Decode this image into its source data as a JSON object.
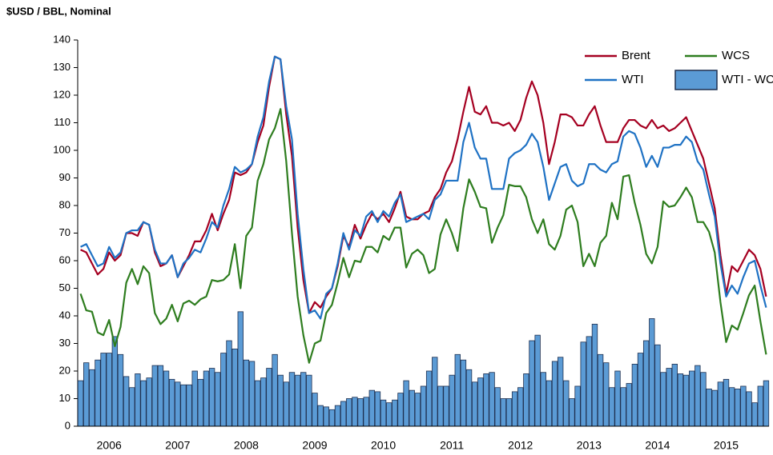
{
  "chart_data": {
    "type": "combo",
    "ylabel": "$USD / BBL, Nominal",
    "categories": [
      null,
      null,
      null,
      null,
      null,
      "2006",
      null,
      null,
      null,
      null,
      null,
      null,
      null,
      null,
      null,
      null,
      null,
      "2007",
      null,
      null,
      null,
      null,
      null,
      null,
      null,
      null,
      null,
      null,
      null,
      "2008",
      null,
      null,
      null,
      null,
      null,
      null,
      null,
      null,
      null,
      null,
      null,
      "2009",
      null,
      null,
      null,
      null,
      null,
      null,
      null,
      null,
      null,
      null,
      null,
      "2010",
      null,
      null,
      null,
      null,
      null,
      null,
      null,
      null,
      null,
      null,
      null,
      "2011",
      null,
      null,
      null,
      null,
      null,
      null,
      null,
      null,
      null,
      null,
      null,
      "2012",
      null,
      null,
      null,
      null,
      null,
      null,
      null,
      null,
      null,
      null,
      null,
      "2013",
      null,
      null,
      null,
      null,
      null,
      null,
      null,
      null,
      null,
      null,
      null,
      "2014",
      null,
      null,
      null,
      null,
      null,
      null,
      null,
      null,
      null,
      null,
      null,
      "2015",
      null,
      null,
      null,
      null,
      null,
      null,
      null
    ],
    "ylim": [
      0,
      140
    ],
    "yticks": [
      0,
      10,
      20,
      30,
      40,
      50,
      60,
      70,
      80,
      90,
      100,
      110,
      120,
      130,
      140
    ],
    "series": [
      {
        "name": "WTI - WCS",
        "type": "bar",
        "color": "#5b9bd5",
        "edge": "#1f3050",
        "values": [
          16.5,
          23,
          20.5,
          24,
          26.5,
          26.5,
          32.5,
          26,
          18,
          14,
          19,
          16.5,
          17.5,
          22,
          22,
          20,
          17,
          16,
          15,
          15,
          20,
          17,
          20,
          21,
          19.5,
          26.5,
          31,
          28,
          41.5,
          24,
          23.5,
          16.5,
          17.5,
          21,
          26,
          18.5,
          16,
          19.5,
          18.5,
          19.5,
          18.5,
          12,
          7.5,
          7,
          6,
          7.5,
          9,
          10,
          10.5,
          10,
          10.5,
          13,
          12.5,
          9.5,
          8.5,
          9.5,
          12,
          16.5,
          13,
          12,
          14.5,
          20,
          25,
          14.5,
          14.5,
          18.5,
          26,
          24,
          20.5,
          16,
          17.5,
          19,
          19.5,
          14,
          10,
          10,
          12.5,
          14,
          19,
          31,
          33,
          19.5,
          16.5,
          23.5,
          25,
          16.5,
          10,
          14.5,
          30.5,
          32.5,
          37,
          26,
          23,
          14,
          20,
          14,
          15.5,
          22.5,
          26.5,
          31,
          39,
          29.5,
          19.5,
          21,
          22.5,
          19,
          18.5,
          20,
          22,
          19.5,
          13.5,
          13,
          16,
          17,
          14,
          13.5,
          14.5,
          12.5,
          8.5,
          14.5,
          16.5
        ]
      },
      {
        "name": "Brent",
        "type": "line",
        "color": "#a50021",
        "values": [
          64,
          63,
          59,
          55,
          57,
          63,
          60,
          62,
          70,
          70,
          69,
          74,
          73,
          63,
          58,
          59,
          62,
          54,
          58,
          62,
          67,
          67,
          71,
          77,
          71,
          77,
          82,
          92,
          91,
          92,
          95,
          103,
          109,
          123,
          134,
          133,
          113,
          98,
          72,
          53,
          41,
          45,
          43,
          47,
          50,
          58,
          69,
          65,
          73,
          68,
          73,
          77,
          75,
          77,
          74,
          79,
          85,
          76,
          75,
          75,
          77,
          78,
          83,
          86,
          92,
          96,
          104,
          114,
          123,
          114,
          113,
          116,
          110,
          110,
          109,
          110,
          107,
          111,
          119,
          125,
          120,
          110,
          95,
          103,
          113,
          113,
          112,
          109,
          109,
          113,
          116,
          109,
          103,
          103,
          103,
          108,
          111,
          111,
          109,
          108,
          111,
          108,
          109,
          107,
          108,
          110,
          112,
          107,
          102,
          97,
          88,
          79,
          62,
          48,
          58,
          56,
          60,
          64,
          62,
          57,
          47
        ]
      },
      {
        "name": "WTI",
        "type": "line",
        "color": "#1f72c4",
        "values": [
          65,
          66,
          62,
          58,
          59,
          65,
          61,
          63,
          70,
          71,
          71,
          74,
          73,
          64,
          59,
          59,
          62,
          54,
          59,
          61,
          64,
          63,
          68,
          74,
          72,
          80,
          86,
          94,
          92,
          93,
          95,
          105,
          112,
          125,
          134,
          133,
          116,
          104,
          77,
          57,
          41,
          42,
          39,
          48,
          50,
          59,
          70,
          64,
          71,
          69,
          76,
          78,
          74,
          78,
          76,
          81,
          84,
          74,
          75,
          76,
          77,
          75,
          82,
          84,
          89,
          89,
          89,
          103,
          110,
          101,
          97,
          97,
          86,
          86,
          86,
          97,
          99,
          100,
          102,
          106,
          103,
          94,
          82,
          88,
          94,
          95,
          89,
          87,
          88,
          95,
          95,
          93,
          92,
          95,
          96,
          105,
          107,
          106,
          101,
          94,
          98,
          94,
          101,
          101,
          102,
          102,
          105,
          103,
          96,
          93,
          84,
          76,
          59,
          47,
          51,
          48,
          54,
          59,
          60,
          51,
          43
        ]
      },
      {
        "name": "WCS",
        "type": "line",
        "color": "#2e7d1f",
        "values": [
          48,
          42,
          41.5,
          34,
          33,
          38.5,
          29,
          36,
          52,
          57,
          51.5,
          58,
          55.5,
          41,
          37,
          39,
          44,
          38,
          44.5,
          45.5,
          44,
          46,
          47,
          53,
          52.5,
          53,
          55,
          66,
          50,
          69,
          72,
          89,
          95,
          104,
          108,
          115,
          96,
          70,
          47,
          33,
          23,
          30,
          31,
          41,
          44,
          52,
          61,
          54,
          60,
          59.5,
          65,
          65,
          63,
          69,
          67.5,
          72,
          72,
          57.5,
          62.5,
          64,
          62,
          55.5,
          57,
          69.5,
          75,
          70,
          63.5,
          79,
          89.5,
          85,
          79.5,
          79,
          66.5,
          72,
          76.5,
          87.5,
          87,
          87,
          83,
          75,
          70,
          75,
          66,
          64,
          69,
          78.5,
          80,
          74,
          58,
          62.5,
          58,
          66.5,
          69,
          81,
          75,
          90.5,
          91,
          81,
          73,
          62.5,
          59,
          65,
          81.5,
          79.5,
          80,
          83,
          86.5,
          83,
          74,
          74,
          70.5,
          63,
          45,
          30.5,
          36.5,
          35,
          41,
          47.5,
          51,
          38,
          26
        ]
      }
    ]
  }
}
